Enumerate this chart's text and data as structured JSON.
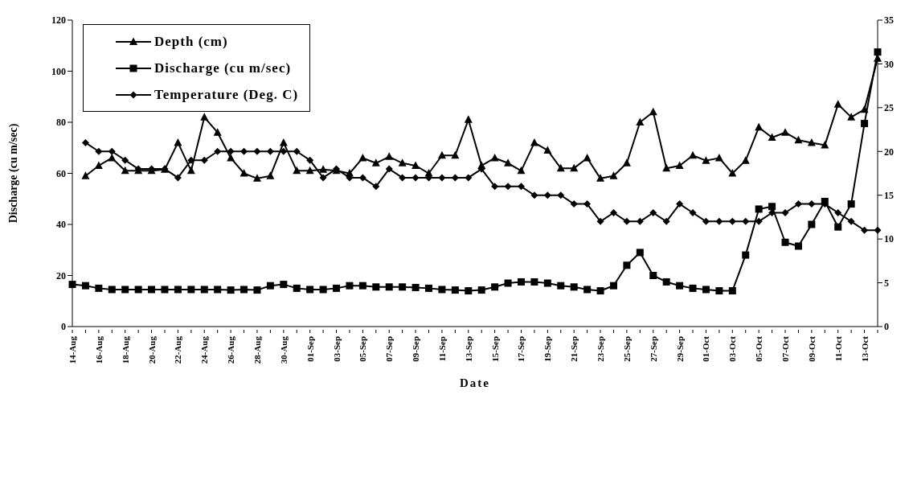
{
  "chart_data": {
    "type": "line",
    "xlabel": "Date",
    "ylabel": "Discharge (cu m/sec)",
    "categories": [
      "14-Aug",
      null,
      "16-Aug",
      null,
      "18-Aug",
      null,
      "20-Aug",
      null,
      "22-Aug",
      null,
      "24-Aug",
      null,
      "26-Aug",
      null,
      "28-Aug",
      null,
      "30-Aug",
      null,
      "01-Sep",
      null,
      "03-Sep",
      null,
      "05-Sep",
      null,
      "07-Sep",
      null,
      "09-Sep",
      null,
      "11-Sep",
      null,
      "13-Sep",
      null,
      "15-Sep",
      null,
      "17-Sep",
      null,
      "19-Sep",
      null,
      "21-Sep",
      null,
      "23-Sep",
      null,
      "25-Sep",
      null,
      "27-Sep",
      null,
      "29-Sep",
      null,
      "01-Oct",
      null,
      "03-Oct",
      null,
      "05-Oct",
      null,
      "07-Oct",
      null,
      "09-Oct",
      null,
      "11-Oct",
      null,
      "13-Oct",
      null
    ],
    "series": [
      {
        "name": "Depth (cm)",
        "color": "#000000",
        "marker": "triangle",
        "values": [
          null,
          59,
          63,
          66,
          61,
          61,
          61,
          61.5,
          72,
          61,
          82,
          76,
          66,
          60,
          58,
          59,
          72,
          61,
          61,
          61.5,
          61,
          60,
          66,
          64,
          66.5,
          64,
          63,
          60,
          67,
          67,
          81,
          63,
          66,
          64,
          61,
          72,
          69,
          62,
          62,
          66,
          58,
          59,
          64,
          80,
          84,
          62,
          63,
          67,
          65,
          66,
          60,
          65,
          78,
          74,
          76,
          73,
          72,
          71,
          87,
          82,
          85,
          105
        ]
      },
      {
        "name": "Discharge (cu m/sec)",
        "color": "#000000",
        "marker": "square",
        "values": [
          16.5,
          16,
          15,
          14.5,
          14.5,
          14.5,
          14.5,
          14.5,
          14.5,
          14.5,
          14.5,
          14.5,
          14.3,
          14.5,
          14.3,
          16,
          16.5,
          15,
          14.5,
          14.5,
          15,
          16,
          16,
          15.5,
          15.5,
          15.5,
          15.3,
          15,
          14.5,
          14.3,
          14,
          14.3,
          15.5,
          17,
          17.5,
          17.5,
          17,
          16,
          15.5,
          14.5,
          14,
          16,
          24,
          29,
          20,
          17.5,
          16,
          15,
          14.5,
          14,
          14,
          28,
          46,
          47,
          33,
          31.5,
          40,
          49,
          39,
          48,
          79.5,
          107.5
        ]
      },
      {
        "name": "Temperature (Deg. C)",
        "color": "#000000",
        "marker": "diamond",
        "axis": "y2",
        "values": [
          null,
          21,
          20,
          20,
          19,
          18,
          18,
          18,
          17,
          19,
          19,
          20,
          20,
          20,
          20,
          20,
          20,
          20,
          19,
          17,
          18,
          17,
          17,
          16,
          18,
          17,
          17,
          17,
          17,
          17,
          17,
          18,
          16,
          16,
          16,
          15,
          15,
          15,
          14,
          14,
          12,
          13,
          12,
          12,
          13,
          12,
          14,
          13,
          12,
          12,
          12,
          12,
          12,
          13,
          13,
          14,
          14,
          14,
          13,
          12,
          11,
          11
        ]
      }
    ],
    "ylim": [
      0,
      120
    ],
    "yticks": [
      0,
      20,
      40,
      60,
      80,
      100,
      120
    ],
    "y2lim": [
      0,
      35
    ],
    "y2ticks": [
      0,
      5,
      10,
      15,
      20,
      25,
      30,
      35
    ],
    "grid": false,
    "legend": "top left",
    "line_style": "solid"
  }
}
